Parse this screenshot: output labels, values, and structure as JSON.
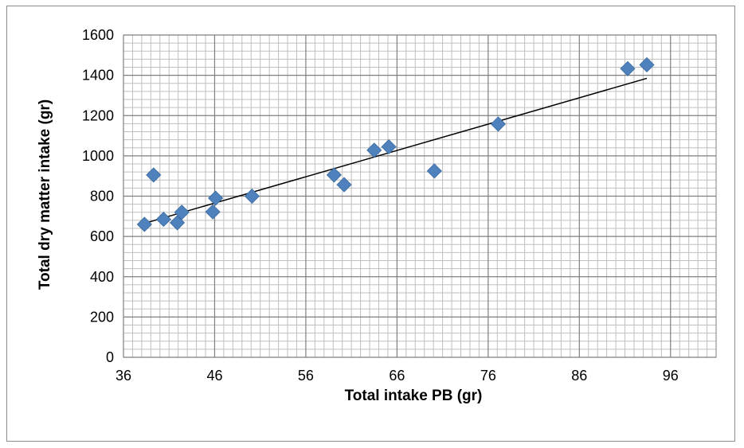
{
  "chart_data": {
    "type": "scatter",
    "title": "",
    "xlabel": "Total intake PB (gr)",
    "ylabel": "Total dry matter intake (gr)",
    "xlim": [
      36,
      101
    ],
    "ylim": [
      0,
      1600
    ],
    "x_ticks": [
      36,
      46,
      56,
      66,
      76,
      86,
      96
    ],
    "y_ticks": [
      0,
      200,
      400,
      600,
      800,
      1000,
      1200,
      1400,
      1600
    ],
    "grid": true,
    "legend": "none",
    "marker": "diamond",
    "marker_color": "#4f81bd",
    "grid_major_color": "#7f7f7f",
    "grid_minor_color": "#bfbfbf",
    "trendline_color": "#000000",
    "series": [
      {
        "points": [
          {
            "x": 38.3,
            "y": 660
          },
          {
            "x": 39.3,
            "y": 905
          },
          {
            "x": 40.4,
            "y": 685
          },
          {
            "x": 41.9,
            "y": 668
          },
          {
            "x": 42.4,
            "y": 720
          },
          {
            "x": 45.8,
            "y": 722
          },
          {
            "x": 46.1,
            "y": 790
          },
          {
            "x": 50.1,
            "y": 800
          },
          {
            "x": 59.1,
            "y": 905
          },
          {
            "x": 60.2,
            "y": 857
          },
          {
            "x": 63.5,
            "y": 1028
          },
          {
            "x": 65.1,
            "y": 1045
          },
          {
            "x": 70.1,
            "y": 925
          },
          {
            "x": 77.1,
            "y": 1158
          },
          {
            "x": 91.3,
            "y": 1433
          },
          {
            "x": 93.4,
            "y": 1452
          }
        ]
      }
    ],
    "trendline": {
      "x": [
        38.3,
        93.4
      ],
      "y": [
        665,
        1385
      ]
    }
  }
}
